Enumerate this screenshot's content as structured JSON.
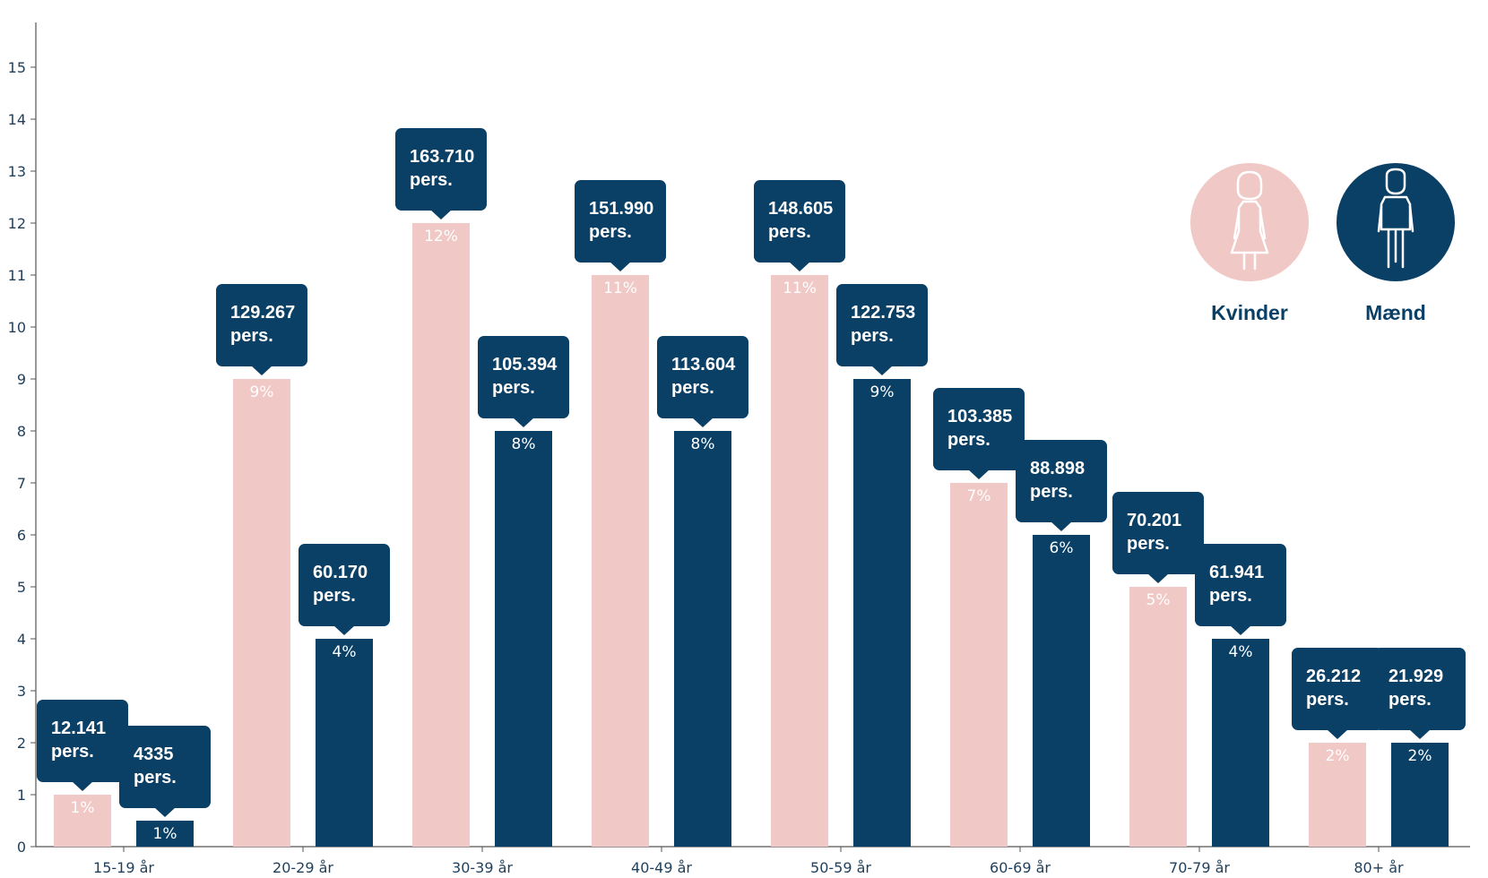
{
  "colors": {
    "women": "#f0c8c6",
    "men": "#0b4066",
    "axis": "#555555",
    "tick_text": "#1f3f5b",
    "callout_text": "#ffffff"
  },
  "legend": {
    "women_label": "Kvinder",
    "men_label": "Mænd",
    "women_icon": "woman-icon",
    "men_icon": "man-icon"
  },
  "chart_data": {
    "type": "bar",
    "categories": [
      "15-19 år",
      "20-29 år",
      "30-39 år",
      "40-49 år",
      "50-59 år",
      "60-69 år",
      "70-79 år",
      "80+ år"
    ],
    "ylim": [
      0,
      16
    ],
    "yticks": [
      0,
      1,
      2,
      3,
      4,
      5,
      6,
      7,
      8,
      9,
      10,
      11,
      12,
      13,
      14,
      15
    ],
    "grid": false,
    "legend_position": "top-right",
    "series": [
      {
        "name": "Kvinder",
        "color": "#f0c8c6",
        "values": [
          1,
          9,
          12,
          11,
          11,
          7,
          5,
          2
        ],
        "value_labels": [
          "1%",
          "9%",
          "12%",
          "11%",
          "11%",
          "7%",
          "5%",
          "2%"
        ],
        "callouts": [
          "12.141",
          "129.267",
          "163.710",
          "151.990",
          "148.605",
          "103.385",
          "70.201",
          "26.212"
        ]
      },
      {
        "name": "Mænd",
        "color": "#0b4066",
        "values": [
          0.5,
          4,
          8,
          8,
          9,
          6,
          4,
          2
        ],
        "value_labels": [
          "1%",
          "4%",
          "8%",
          "8%",
          "9%",
          "6%",
          "4%",
          "2%"
        ],
        "callouts": [
          "4335",
          "60.170",
          "105.394",
          "113.604",
          "122.753",
          "88.898",
          "61.941",
          "21.929"
        ]
      }
    ],
    "callout_unit": "pers."
  }
}
